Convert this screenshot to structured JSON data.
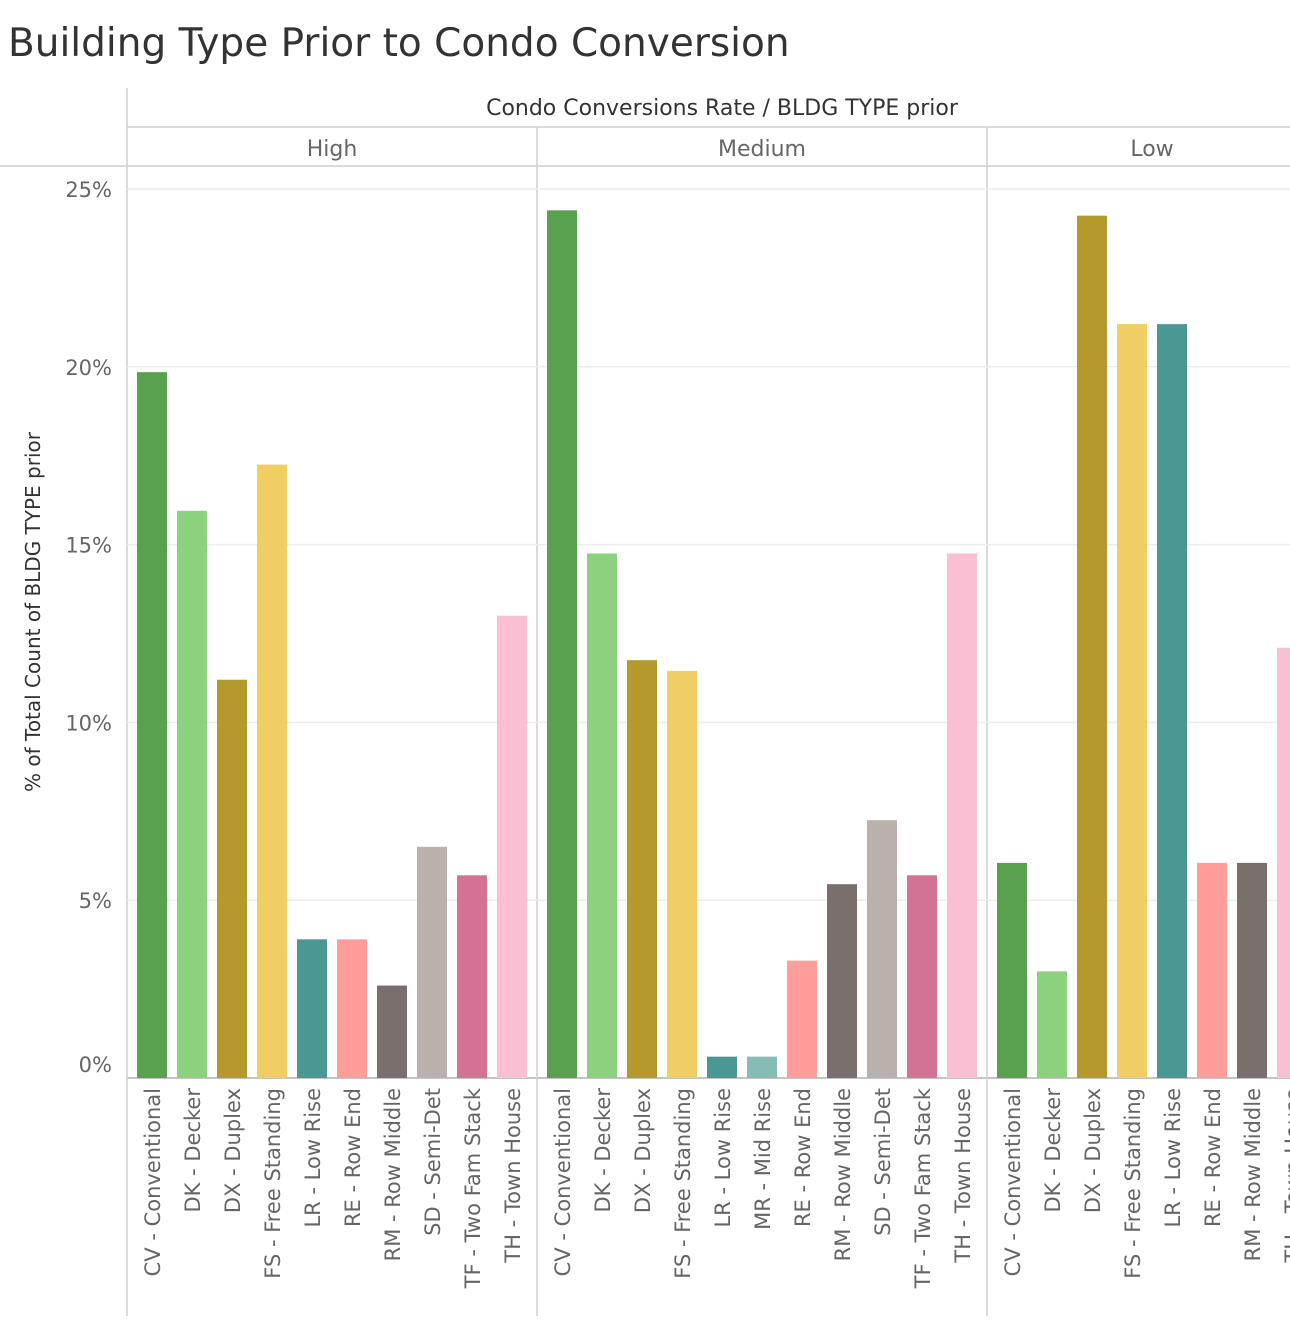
{
  "title": "Building Type Prior to Condo Conversion",
  "chart_data": {
    "type": "bar",
    "column_header": "Condo Conversions Rate  /  BLDG TYPE prior",
    "ylabel": "% of Total Count of BLDG TYPE prior",
    "ylim": [
      0,
      25
    ],
    "yticks": [
      "0%",
      "5%",
      "10%",
      "15%",
      "20%",
      "25%"
    ],
    "grid": true,
    "panels": [
      {
        "name": "High",
        "categories": [
          "CV - Conventional",
          "DK - Decker",
          "DX - Duplex",
          "FS - Free Standing",
          "LR - Low Rise",
          "RE - Row End",
          "RM - Row Middle",
          "SD - Semi-Det",
          "TF - Two Fam Stack",
          "TH - Town House"
        ],
        "values": [
          19.85,
          15.95,
          11.2,
          17.25,
          3.9,
          3.9,
          2.6,
          6.5,
          5.7,
          13.0
        ]
      },
      {
        "name": "Medium",
        "categories": [
          "CV - Conventional",
          "DK - Decker",
          "DX - Duplex",
          "FS - Free Standing",
          "LR - Low Rise",
          "MR - Mid Rise",
          "RE - Row End",
          "RM - Row Middle",
          "SD - Semi-Det",
          "TF - Two Fam Stack",
          "TH - Town House"
        ],
        "values": [
          24.4,
          14.75,
          11.75,
          11.45,
          0.6,
          0.6,
          3.3,
          5.45,
          7.25,
          5.7,
          14.75
        ]
      },
      {
        "name": "Low",
        "categories": [
          "CV - Conventional",
          "DK - Decker",
          "DX - Duplex",
          "FS - Free Standing",
          "LR - Low Rise",
          "RE - Row End",
          "RM - Row Middle",
          "TH - Town House"
        ],
        "values": [
          6.05,
          3.0,
          24.25,
          21.2,
          21.2,
          6.05,
          6.05,
          12.1
        ]
      }
    ],
    "category_colors": {
      "CV - Conventional": "#59a14f",
      "DK - Decker": "#8cd17d",
      "DX - Duplex": "#b6992d",
      "FS - Free Standing": "#f1ce63",
      "LR - Low Rise": "#499894",
      "MR - Mid Rise": "#86bcb6",
      "RE - Row End": "#ff9d9a",
      "RM - Row Middle": "#79706e",
      "SD - Semi-Det": "#bab0ac",
      "TF - Two Fam Stack": "#d37295",
      "TH - Town House": "#fabfd2"
    }
  }
}
